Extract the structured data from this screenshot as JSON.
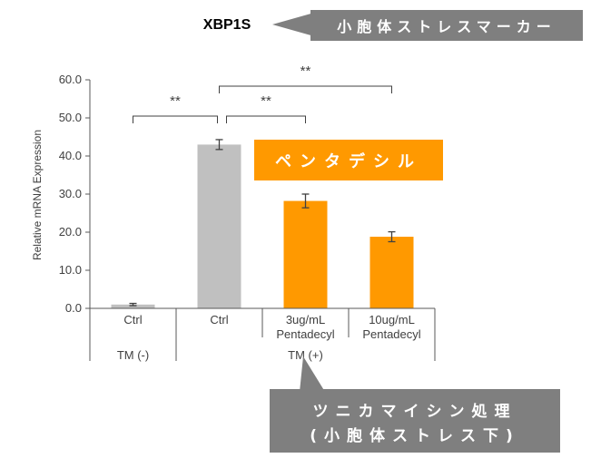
{
  "chart_data": {
    "type": "bar",
    "title": "XBP1S",
    "ylabel": "Relative mRNA Expression",
    "ylim": [
      0,
      60
    ],
    "yticks": [
      "0.0",
      "10.0",
      "20.0",
      "30.0",
      "40.0",
      "50.0",
      "60.0"
    ],
    "categories": [
      "Ctrl",
      "Ctrl",
      "3ug/mL Pentadecyl",
      "10ug/mL Pentadecyl"
    ],
    "category_lines": [
      [
        "Ctrl"
      ],
      [
        "Ctrl"
      ],
      [
        "3ug/mL",
        "Pentadecyl"
      ],
      [
        "10ug/mL",
        "Pentadecyl"
      ]
    ],
    "groups": [
      {
        "label": "TM (-)",
        "members": [
          0
        ]
      },
      {
        "label": "TM (+)",
        "members": [
          1,
          2,
          3
        ]
      }
    ],
    "values": [
      1.0,
      43.0,
      28.2,
      18.8
    ],
    "errors": [
      0.3,
      1.3,
      1.8,
      1.3
    ],
    "bar_colors": [
      "#c0c0c0",
      "#c0c0c0",
      "#ff9900",
      "#ff9900"
    ],
    "significance": [
      {
        "from": 0,
        "to": 1,
        "label": "**"
      },
      {
        "from": 1,
        "to": 2,
        "label": "**"
      },
      {
        "from": 1,
        "to": 3,
        "label": "**"
      }
    ],
    "grid": false,
    "annotations": {
      "title_callout": "小胞体ストレスマーカー",
      "pentadecyl_box": "ペンタデシル",
      "tunicamycin_callout_line1": "ツニカマイシン処理",
      "tunicamycin_callout_line2": "(小胞体ストレス下)"
    },
    "colors": {
      "gray_callout": "#7f7f7f",
      "orange": "#ff9900",
      "axis": "#595959",
      "error_bar": "#404040"
    }
  }
}
